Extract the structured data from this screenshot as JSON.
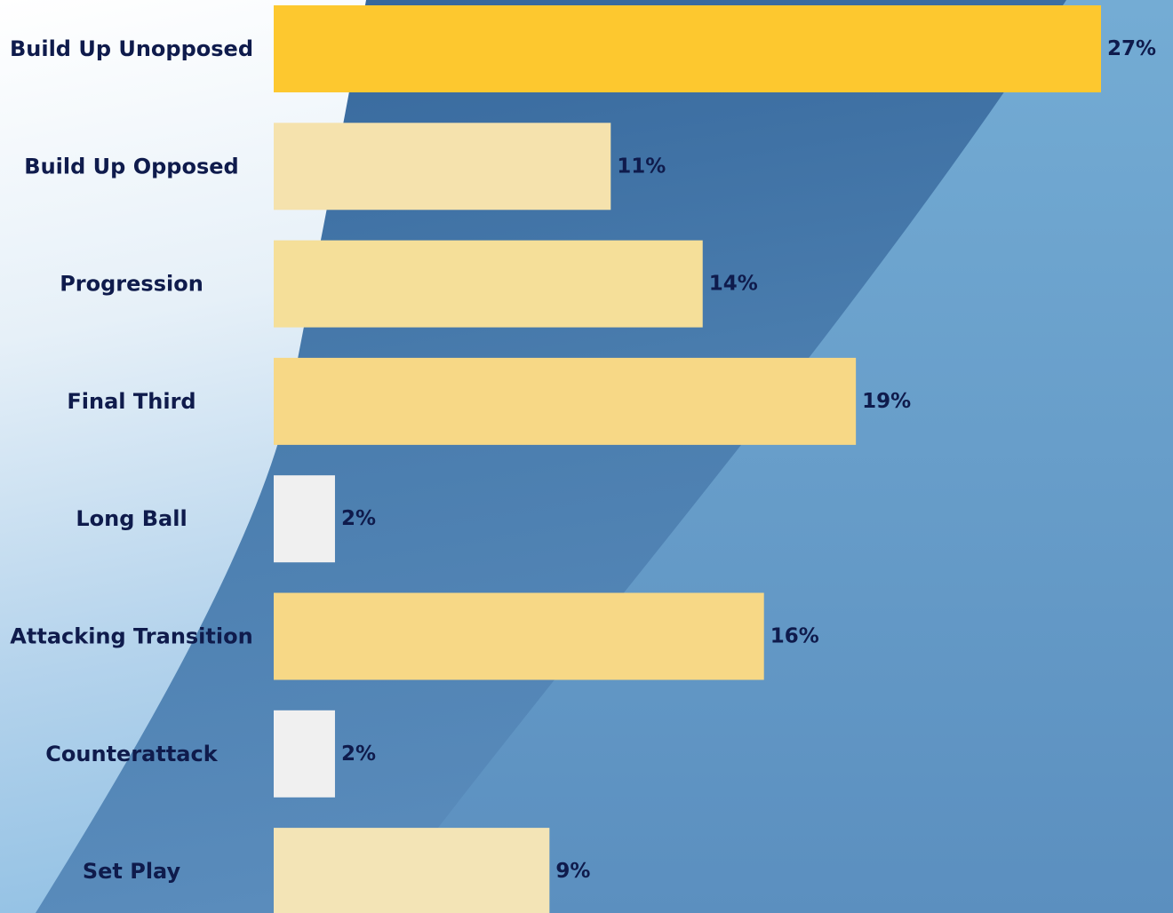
{
  "chart_data": {
    "type": "bar",
    "orientation": "horizontal",
    "title": "",
    "xlabel": "",
    "ylabel": "",
    "categories": [
      "Build Up Unopposed",
      "Build Up Opposed",
      "Progression",
      "Final Third",
      "Long Ball",
      "Attacking Transition",
      "Counterattack",
      "Set Play"
    ],
    "values": [
      27,
      11,
      14,
      19,
      2,
      16,
      2,
      9
    ],
    "value_labels": [
      "27%",
      "11%",
      "14%",
      "19%",
      "2%",
      "16%",
      "2%",
      "9%"
    ],
    "bar_colors": [
      "#fdc82f",
      "#f5e2ad",
      "#f5df99",
      "#f7d886",
      "#f0f0f0",
      "#f7d886",
      "#f0f0f0",
      "#f3e4b6"
    ],
    "xlim": [
      0,
      27
    ],
    "grid": false,
    "legend": "none"
  },
  "colors": {
    "text": "#0f1b4c",
    "background_light": "#ffffff",
    "background_mid": "#4a7aad",
    "background_right": "#6aa6d0"
  }
}
